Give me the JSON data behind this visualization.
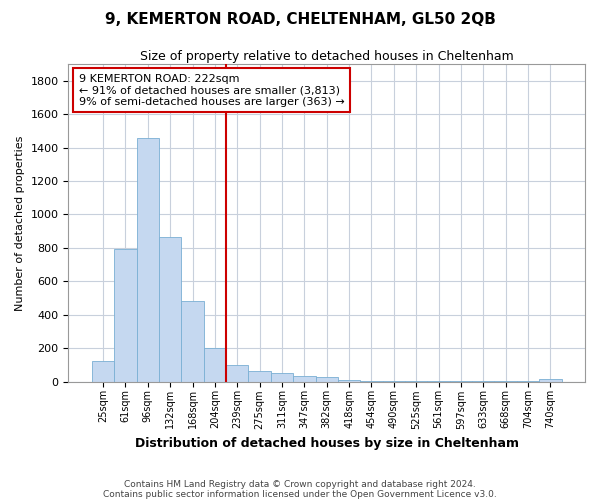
{
  "title": "9, KEMERTON ROAD, CHELTENHAM, GL50 2QB",
  "subtitle": "Size of property relative to detached houses in Cheltenham",
  "xlabel": "Distribution of detached houses by size in Cheltenham",
  "ylabel": "Number of detached properties",
  "footer_line1": "Contains HM Land Registry data © Crown copyright and database right 2024.",
  "footer_line2": "Contains public sector information licensed under the Open Government Licence v3.0.",
  "categories": [
    "25sqm",
    "61sqm",
    "96sqm",
    "132sqm",
    "168sqm",
    "204sqm",
    "239sqm",
    "275sqm",
    "311sqm",
    "347sqm",
    "382sqm",
    "418sqm",
    "454sqm",
    "490sqm",
    "525sqm",
    "561sqm",
    "597sqm",
    "633sqm",
    "668sqm",
    "704sqm",
    "740sqm"
  ],
  "values": [
    120,
    795,
    1455,
    865,
    480,
    200,
    100,
    65,
    50,
    35,
    25,
    10,
    5,
    3,
    2,
    2,
    1,
    1,
    1,
    1,
    15
  ],
  "bar_color": "#c5d8f0",
  "bar_edge_color": "#7aafd4",
  "ylim": [
    0,
    1900
  ],
  "yticks": [
    0,
    200,
    400,
    600,
    800,
    1000,
    1200,
    1400,
    1600,
    1800
  ],
  "annotation_text": "9 KEMERTON ROAD: 222sqm\n← 91% of detached houses are smaller (3,813)\n9% of semi-detached houses are larger (363) →",
  "background_color": "#ffffff",
  "plot_bg_color": "#ffffff",
  "grid_color": "#c8d0dc",
  "annotation_box_color": "#ffffff",
  "annotation_box_edge": "#cc0000",
  "vline_color": "#cc0000",
  "vline_x": 5.5
}
